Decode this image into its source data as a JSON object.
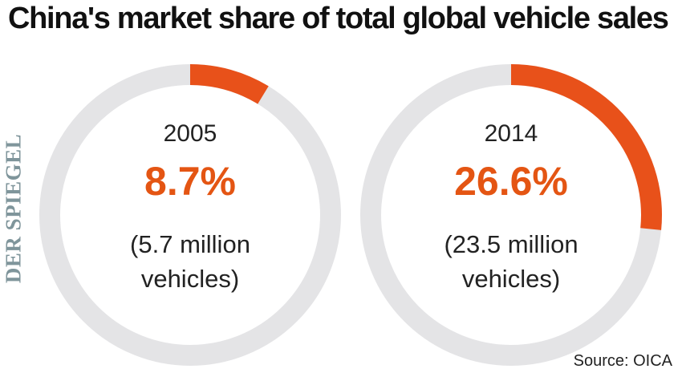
{
  "title": "China's market share of total global vehicle sales",
  "brand": "DER SPIEGEL",
  "source": "Source: OICA",
  "colors": {
    "highlight": "#e8511a",
    "track": "#e4e4e6",
    "text": "#222222",
    "brand": "#7f959b"
  },
  "chart_data": [
    {
      "type": "pie",
      "subtype": "donut",
      "year": "2005",
      "value": 8.7,
      "unit": "%",
      "label": "8.7%",
      "note_lines": [
        "(5.7 million",
        "vehicles)"
      ]
    },
    {
      "type": "pie",
      "subtype": "donut",
      "year": "2014",
      "value": 26.6,
      "unit": "%",
      "label": "26.6%",
      "note_lines": [
        "(23.5 million",
        "vehicles)"
      ]
    }
  ]
}
